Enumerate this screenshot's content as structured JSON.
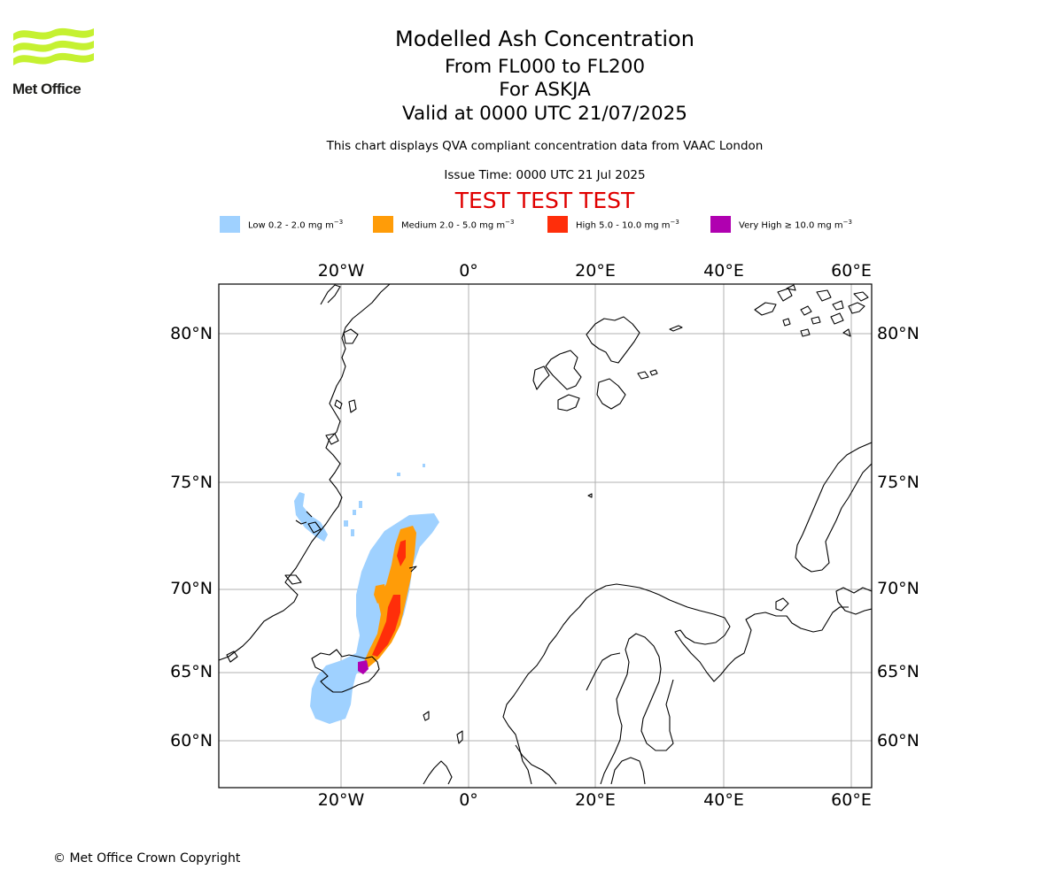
{
  "logo": {
    "name": "Met Office"
  },
  "header": {
    "title": "Modelled Ash Concentration",
    "levels": "From FL000 to FL200",
    "volcano": "For ASKJA",
    "valid": "Valid at 0000 UTC 21/07/2025",
    "description": "This chart displays QVA compliant concentration data from VAAC London",
    "issue": "Issue Time: 0000 UTC 21 Jul 2025",
    "test_banner": "TEST TEST TEST"
  },
  "legend": [
    {
      "label": "Low 0.2 - 2.0 mg m",
      "unit_exp": "−3",
      "color": "#9fd1ff"
    },
    {
      "label": "Medium 2.0 - 5.0 mg m",
      "unit_exp": "−3",
      "color": "#ff9c08"
    },
    {
      "label": "High 5.0 - 10.0 mg m",
      "unit_exp": "−3",
      "color": "#ff2e0a"
    },
    {
      "label": "Very High  ≥  10.0 mg m",
      "unit_exp": "−3",
      "color": "#b000b0"
    }
  ],
  "map": {
    "lon_ticks": [
      "20°W",
      "0°",
      "20°E",
      "40°E",
      "60°E"
    ],
    "lat_ticks": [
      "80°N",
      "75°N",
      "70°N",
      "65°N",
      "60°N"
    ],
    "gridline_color": "#b0b0b0",
    "coastline_color": "#000000"
  },
  "footer": {
    "copyright": "© Met Office Crown Copyright"
  }
}
